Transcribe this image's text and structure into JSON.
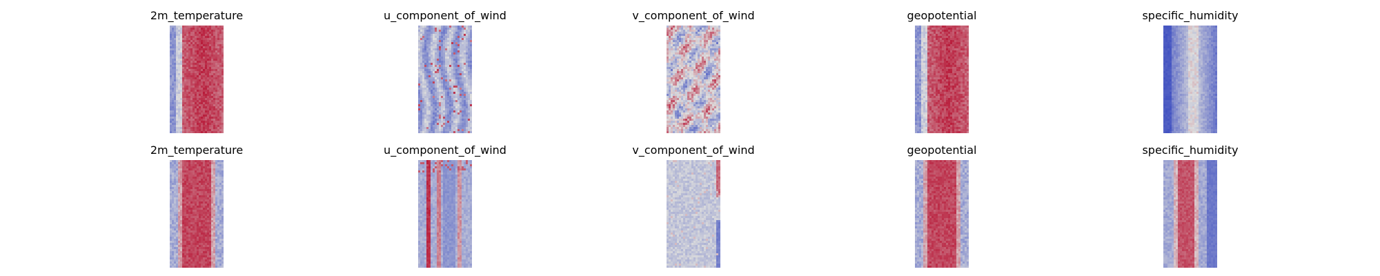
{
  "chart_data": {
    "type": "heatmap",
    "colormap": "coolwarm",
    "colormap_colors": {
      "low": "#3b4cc0",
      "mid": "#dddddd",
      "high": "#b40426"
    },
    "axes": "off",
    "grid": false,
    "rows": [
      {
        "panels": [
          {
            "title": "2m_temperature",
            "pattern": "left_cool_band_then_warm_center",
            "dominant": "warm"
          },
          {
            "title": "u_component_of_wind",
            "pattern": "vertical_cool_streaks_with_red_flecks",
            "dominant": "cool"
          },
          {
            "title": "v_component_of_wind",
            "pattern": "mixed_red_blue_noisy",
            "dominant": "mixed"
          },
          {
            "title": "geopotential",
            "pattern": "left_cool_band_then_warm_center",
            "dominant": "warm"
          },
          {
            "title": "specific_humidity",
            "pattern": "dark_blue_edges_light_center_streak",
            "dominant": "cool"
          }
        ]
      },
      {
        "panels": [
          {
            "title": "2m_temperature",
            "pattern": "warm_center_band_cool_edges",
            "dominant": "warm"
          },
          {
            "title": "u_component_of_wind",
            "pattern": "red_streaks_blue_background",
            "dominant": "cool"
          },
          {
            "title": "v_component_of_wind",
            "pattern": "light_blue_noise_red_right_edge",
            "dominant": "cool"
          },
          {
            "title": "geopotential",
            "pattern": "warm_center_band_cool_edges",
            "dominant": "warm"
          },
          {
            "title": "specific_humidity",
            "pattern": "red_center_band_blue_edges",
            "dominant": "mixed"
          }
        ]
      }
    ]
  }
}
